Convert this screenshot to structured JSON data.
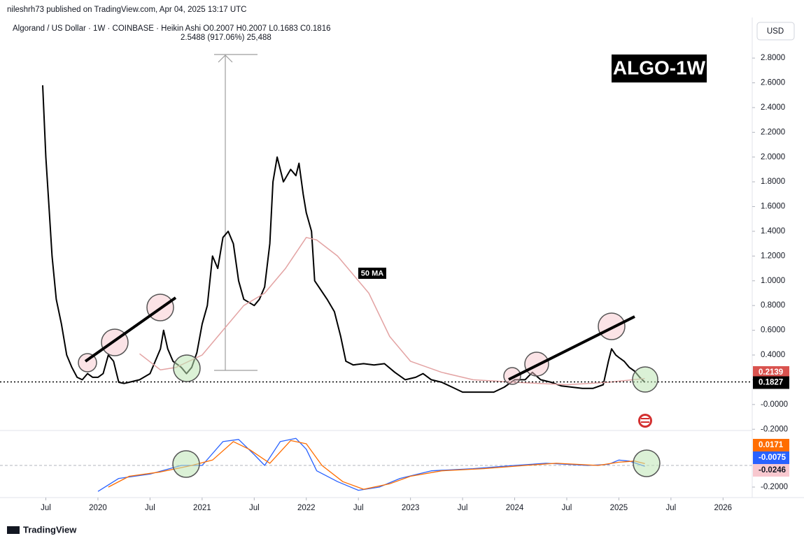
{
  "header": "nileshrh73 published on TradingView.com, Apr 04, 2025 13:17 UTC",
  "footer": "TradingView",
  "chart_data": {
    "type": "line",
    "symbol": "Algorand / US Dollar · 1W · COINBASE · Heikin Ashi  O0.2007  H0.2007  L0.1683  C0.1816",
    "measurement": "2.5488 (917.06%) 25,488",
    "badge": "ALGO-1W",
    "currency": "USD",
    "ma_label": "50 MA",
    "xlim": [
      2019.06,
      2026.28
    ],
    "xticks": [
      {
        "value": 2019.5,
        "label": "Jul"
      },
      2020,
      {
        "value": 2020.5,
        "label": "Jul"
      },
      2021,
      {
        "value": 2021.5,
        "label": "Jul"
      },
      2022,
      {
        "value": 2022.5,
        "label": "Jul"
      },
      2023,
      {
        "value": 2023.5,
        "label": "Jul"
      },
      2024,
      {
        "value": 2024.5,
        "label": "Jul"
      },
      2025,
      {
        "value": 2025.5,
        "label": "Jul"
      },
      2026
    ],
    "ylim": [
      -0.21,
      3.1
    ],
    "yticks": [
      {
        "value": -0.2,
        "label": "-0.2000"
      },
      {
        "value": 0,
        "label": "-0.0000"
      },
      {
        "value": 0.2,
        "label": "0.2000"
      },
      {
        "value": 0.4,
        "label": "0.4000"
      },
      {
        "value": 0.6,
        "label": "0.6000"
      },
      {
        "value": 0.8,
        "label": "0.8000"
      },
      {
        "value": 1.0,
        "label": "1.0000"
      },
      {
        "value": 1.2,
        "label": "1.2000"
      },
      {
        "value": 1.4,
        "label": "1.4000"
      },
      {
        "value": 1.6,
        "label": "1.6000"
      },
      {
        "value": 1.8,
        "label": "1.8000"
      },
      {
        "value": 2.0,
        "label": "2.0000"
      },
      {
        "value": 2.2,
        "label": "2.2000"
      },
      {
        "value": 2.4,
        "label": "2.4000"
      },
      {
        "value": 2.6,
        "label": "2.6000"
      },
      {
        "value": 2.8,
        "label": "2.8000"
      }
    ],
    "series": [
      {
        "color": "#000000",
        "x": [
          2019.47,
          2019.5,
          2019.53,
          2019.56,
          2019.6,
          2019.65,
          2019.7,
          2019.75,
          2019.8,
          2019.85,
          2019.9,
          2019.95,
          2020.0,
          2020.05,
          2020.1,
          2020.15,
          2020.2,
          2020.25,
          2020.3,
          2020.4,
          2020.5,
          2020.6,
          2020.63,
          2020.67,
          2020.72,
          2020.8,
          2020.85,
          2020.9,
          2020.95,
          2021.0,
          2021.05,
          2021.1,
          2021.15,
          2021.2,
          2021.25,
          2021.3,
          2021.35,
          2021.4,
          2021.5,
          2021.55,
          2021.6,
          2021.65,
          2021.68,
          2021.72,
          2021.78,
          2021.85,
          2021.9,
          2021.93,
          2021.97,
          2022.0,
          2022.05,
          2022.08,
          2022.12,
          2022.2,
          2022.27,
          2022.33,
          2022.38,
          2022.45,
          2022.55,
          2022.65,
          2022.75,
          2022.85,
          2022.95,
          2023.05,
          2023.12,
          2023.2,
          2023.3,
          2023.4,
          2023.5,
          2023.6,
          2023.7,
          2023.8,
          2023.9,
          2024.0,
          2024.1,
          2024.17,
          2024.25,
          2024.35,
          2024.45,
          2024.55,
          2024.65,
          2024.75,
          2024.85,
          2024.9,
          2024.93,
          2024.97,
          2025.0,
          2025.05,
          2025.1,
          2025.15,
          2025.2,
          2025.25
        ],
        "values": [
          2.58,
          2.0,
          1.6,
          1.2,
          0.85,
          0.65,
          0.4,
          0.3,
          0.22,
          0.2,
          0.25,
          0.22,
          0.22,
          0.25,
          0.4,
          0.35,
          0.18,
          0.17,
          0.18,
          0.2,
          0.25,
          0.45,
          0.6,
          0.45,
          0.35,
          0.3,
          0.25,
          0.3,
          0.42,
          0.65,
          0.8,
          1.2,
          1.1,
          1.35,
          1.4,
          1.3,
          1.0,
          0.85,
          0.8,
          0.85,
          0.95,
          1.3,
          1.8,
          2.0,
          1.8,
          1.9,
          1.85,
          1.95,
          1.7,
          1.55,
          1.4,
          1.0,
          0.95,
          0.85,
          0.75,
          0.55,
          0.35,
          0.32,
          0.33,
          0.32,
          0.33,
          0.26,
          0.2,
          0.22,
          0.25,
          0.2,
          0.18,
          0.14,
          0.1,
          0.1,
          0.1,
          0.1,
          0.14,
          0.2,
          0.2,
          0.26,
          0.2,
          0.18,
          0.15,
          0.14,
          0.13,
          0.13,
          0.16,
          0.35,
          0.45,
          0.4,
          0.38,
          0.35,
          0.3,
          0.27,
          0.22,
          0.18
        ]
      },
      {
        "name": "50 MA",
        "color": "#e3a3a3",
        "x": [
          2020.4,
          2020.6,
          2020.75,
          2021.0,
          2021.2,
          2021.4,
          2021.6,
          2021.8,
          2022.0,
          2022.1,
          2022.3,
          2022.6,
          2022.8,
          2023.0,
          2023.3,
          2023.6,
          2024.0,
          2024.5,
          2024.9,
          2025.25
        ],
        "values": [
          0.41,
          0.28,
          0.3,
          0.4,
          0.6,
          0.8,
          0.9,
          1.1,
          1.35,
          1.33,
          1.2,
          0.9,
          0.55,
          0.35,
          0.26,
          0.2,
          0.18,
          0.16,
          0.18,
          0.21
        ]
      }
    ],
    "last_price": 0.1827,
    "ma_last": 0.2139,
    "macd": {
      "ylim": [
        -0.31,
        0.31
      ],
      "yticks": [
        {
          "value": -0.2,
          "label": "-0.2000"
        }
      ],
      "series": [
        {
          "color": "#2962ff",
          "x": [
            2020.0,
            2020.2,
            2020.5,
            2020.8,
            2021.0,
            2021.2,
            2021.35,
            2021.5,
            2021.6,
            2021.75,
            2021.9,
            2022.0,
            2022.1,
            2022.3,
            2022.5,
            2022.7,
            2022.9,
            2023.2,
            2023.6,
            2024.0,
            2024.3,
            2024.7,
            2024.9,
            2025.0,
            2025.1,
            2025.25
          ],
          "values": [
            -0.24,
            -0.12,
            -0.08,
            0.0,
            0.0,
            0.22,
            0.24,
            0.1,
            0.0,
            0.22,
            0.25,
            0.15,
            -0.05,
            -0.15,
            -0.23,
            -0.2,
            -0.12,
            -0.05,
            -0.03,
            0.0,
            0.02,
            0.0,
            0.01,
            0.05,
            0.04,
            -0.0075
          ]
        },
        {
          "color": "#ff6d00",
          "x": [
            2020.1,
            2020.3,
            2020.6,
            2020.9,
            2021.1,
            2021.3,
            2021.45,
            2021.65,
            2021.85,
            2022.0,
            2022.15,
            2022.35,
            2022.55,
            2022.8,
            2023.0,
            2023.3,
            2023.7,
            2024.1,
            2024.4,
            2024.8,
            2025.0,
            2025.15,
            2025.25
          ],
          "values": [
            -0.2,
            -0.1,
            -0.06,
            0.0,
            0.05,
            0.22,
            0.15,
            0.02,
            0.23,
            0.2,
            0.0,
            -0.15,
            -0.22,
            -0.17,
            -0.1,
            -0.05,
            -0.03,
            0.0,
            0.02,
            0.0,
            0.03,
            0.04,
            0.0171
          ]
        }
      ],
      "histogram_last": -0.0246
    }
  }
}
